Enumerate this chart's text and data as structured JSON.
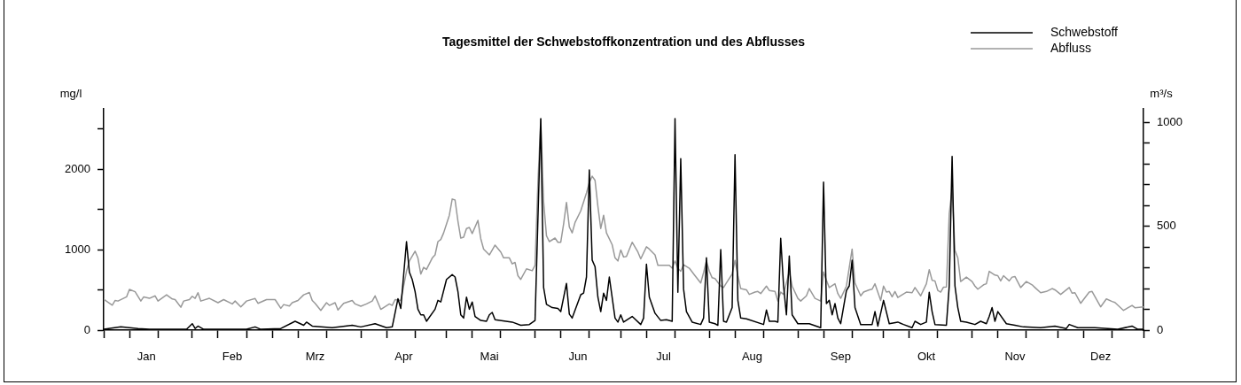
{
  "chart_data": {
    "type": "line",
    "title": "Tagesmittel der Schwebstoffkonzentration und des Abflusses",
    "ylabel": "mg/l",
    "y2label": "m³/s",
    "legend": "top right",
    "marker": "none",
    "line_style": "solid",
    "grid": false,
    "xlim": [
      "--01-01",
      "--12-31"
    ],
    "xticks": [
      {
        "value": "--01-01",
        "label": null
      },
      {
        "value": "--01-10",
        "label": null
      },
      {
        "value": "--01-16",
        "label": "Jan"
      },
      {
        "value": "--01-20",
        "label": null
      },
      {
        "value": "--02-01",
        "label": null
      },
      {
        "value": "--02-10",
        "label": null
      },
      {
        "value": "--02-15",
        "label": "Feb"
      },
      {
        "value": "--02-20",
        "label": null
      },
      {
        "value": "--03-01",
        "label": null
      },
      {
        "value": "--03-10",
        "label": null
      },
      {
        "value": "--03-16",
        "label": "Mrz"
      },
      {
        "value": "--03-20",
        "label": null
      },
      {
        "value": "--04-01",
        "label": null
      },
      {
        "value": "--04-10",
        "label": null
      },
      {
        "value": "--04-16",
        "label": "Apr"
      },
      {
        "value": "--04-20",
        "label": null
      },
      {
        "value": "--05-01",
        "label": null
      },
      {
        "value": "--05-10",
        "label": null
      },
      {
        "value": "--05-16",
        "label": "Mai"
      },
      {
        "value": "--05-20",
        "label": null
      },
      {
        "value": "--06-01",
        "label": null
      },
      {
        "value": "--06-10",
        "label": null
      },
      {
        "value": "--06-16",
        "label": "Jun"
      },
      {
        "value": "--06-20",
        "label": null
      },
      {
        "value": "--07-01",
        "label": null
      },
      {
        "value": "--07-10",
        "label": null
      },
      {
        "value": "--07-16",
        "label": "Jul"
      },
      {
        "value": "--07-20",
        "label": null
      },
      {
        "value": "--08-01",
        "label": null
      },
      {
        "value": "--08-10",
        "label": null
      },
      {
        "value": "--08-16",
        "label": "Aug"
      },
      {
        "value": "--08-20",
        "label": null
      },
      {
        "value": "--09-01",
        "label": null
      },
      {
        "value": "--09-10",
        "label": null
      },
      {
        "value": "--09-16",
        "label": "Sep"
      },
      {
        "value": "--09-20",
        "label": null
      },
      {
        "value": "--10-01",
        "label": null
      },
      {
        "value": "--10-10",
        "label": null
      },
      {
        "value": "--10-16",
        "label": "Okt"
      },
      {
        "value": "--10-20",
        "label": null
      },
      {
        "value": "--11-01",
        "label": null
      },
      {
        "value": "--11-10",
        "label": null
      },
      {
        "value": "--11-16",
        "label": "Nov"
      },
      {
        "value": "--11-20",
        "label": null
      },
      {
        "value": "--12-01",
        "label": null
      },
      {
        "value": "--12-10",
        "label": null
      },
      {
        "value": "--12-16",
        "label": "Dez"
      },
      {
        "value": "--12-20",
        "label": null
      },
      {
        "value": "--12-31",
        "label": null
      }
    ],
    "ylim": [
      0,
      2750
    ],
    "yticks": [
      0,
      {
        "value": 500,
        "label": null
      },
      1000,
      {
        "value": 1500,
        "label": null
      },
      2000,
      {
        "value": 2500,
        "label": null
      }
    ],
    "y2lim": [
      0,
      1065
    ],
    "y2ticks": [
      0,
      {
        "value": 100,
        "label": null
      },
      {
        "value": 200,
        "label": null
      },
      {
        "value": 300,
        "label": null
      },
      {
        "value": 400,
        "label": null
      },
      500,
      {
        "value": 600,
        "label": null
      },
      {
        "value": 700,
        "label": null
      },
      {
        "value": 800,
        "label": null
      },
      {
        "value": 900,
        "label": null
      },
      1000
    ],
    "series": [
      {
        "name": "Schwebstoff",
        "color": "#000000",
        "x": [
          "--01-01",
          "--01-07",
          "--01-13",
          "--01-17",
          "--01-30",
          "--02-01",
          "--02-02",
          "--02-03",
          "--02-05",
          "--02-20",
          "--02-23",
          "--02-25",
          "--03-04",
          "--03-09",
          "--03-12",
          "--03-13",
          "--03-15",
          "--03-22",
          "--03-29",
          "--04-01",
          "--04-06",
          "--04-10",
          "--04-12",
          "--04-14",
          "--04-15",
          "--04-17",
          "--04-18",
          "--04-19",
          "--04-20",
          "--04-21",
          "--04-22",
          "--04-23",
          "--04-24",
          "--04-27",
          "--04-28",
          "--04-29",
          "--05-01",
          "--05-03",
          "--05-04",
          "--05-05",
          "--05-06",
          "--05-07",
          "--05-08",
          "--05-09",
          "--05-10",
          "--05-11",
          "--05-13",
          "--05-15",
          "--05-16",
          "--05-17",
          "--05-18",
          "--05-24",
          "--05-27",
          "--05-30",
          "--06-01",
          "--06-03",
          "--06-04",
          "--06-05",
          "--06-07",
          "--06-09",
          "--06-10",
          "--06-12",
          "--06-13",
          "--06-14",
          "--06-17",
          "--06-18",
          "--06-19",
          "--06-20",
          "--06-21",
          "--06-22",
          "--06-23",
          "--06-24",
          "--06-25",
          "--06-26",
          "--06-27",
          "--06-29",
          "--06-30",
          "--07-01",
          "--07-02",
          "--07-05",
          "--07-08",
          "--07-09",
          "--07-10",
          "--07-11",
          "--07-13",
          "--07-15",
          "--07-17",
          "--07-19",
          "--07-20",
          "--07-21",
          "--07-22",
          "--07-23",
          "--07-24",
          "--07-26",
          "--07-29",
          "--07-30",
          "--07-31",
          "--08-01",
          "--08-03",
          "--08-04",
          "--08-05",
          "--08-06",
          "--08-07",
          "--08-09",
          "--08-10",
          "--08-11",
          "--08-12",
          "--08-14",
          "--08-20",
          "--08-21",
          "--08-22",
          "--08-24",
          "--08-25",
          "--08-26",
          "--08-27",
          "--08-28",
          "--08-29",
          "--08-30",
          "--09-01",
          "--09-05",
          "--09-09",
          "--09-10",
          "--09-11",
          "--09-12",
          "--09-13",
          "--09-14",
          "--09-15",
          "--09-16",
          "--09-18",
          "--09-19",
          "--09-20",
          "--09-21",
          "--09-23",
          "--09-27",
          "--09-28",
          "--09-29",
          "--10-01",
          "--10-03",
          "--10-06",
          "--10-08",
          "--10-11",
          "--10-12",
          "--10-14",
          "--10-16",
          "--10-17",
          "--10-18",
          "--10-19",
          "--10-23",
          "--10-24",
          "--10-25",
          "--10-26",
          "--10-27",
          "--10-28",
          "--10-30",
          "--11-02",
          "--11-04",
          "--11-06",
          "--11-07",
          "--11-08",
          "--11-09",
          "--11-10",
          "--11-13",
          "--11-16",
          "--11-19",
          "--11-25",
          "--11-30",
          "--12-04",
          "--12-05",
          "--12-08",
          "--12-14",
          "--12-22",
          "--12-27",
          "--12-29",
          "--12-31"
        ],
        "values": [
          10,
          40,
          20,
          10,
          10,
          80,
          20,
          50,
          10,
          10,
          40,
          10,
          20,
          110,
          60,
          100,
          50,
          30,
          60,
          40,
          80,
          30,
          40,
          390,
          270,
          1100,
          720,
          630,
          480,
          260,
          190,
          190,
          110,
          260,
          370,
          350,
          630,
          690,
          660,
          480,
          190,
          150,
          410,
          260,
          350,
          170,
          120,
          110,
          190,
          220,
          130,
          100,
          60,
          70,
          120,
          2630,
          530,
          320,
          280,
          270,
          230,
          580,
          200,
          150,
          440,
          460,
          660,
          1990,
          870,
          790,
          410,
          230,
          460,
          370,
          660,
          150,
          100,
          190,
          100,
          170,
          70,
          150,
          820,
          410,
          210,
          120,
          130,
          110,
          2630,
          470,
          2130,
          510,
          230,
          100,
          70,
          150,
          900,
          100,
          80,
          60,
          1000,
          110,
          100,
          280,
          2180,
          370,
          150,
          140,
          70,
          250,
          110,
          110,
          100,
          1140,
          550,
          190,
          920,
          190,
          80,
          80,
          30,
          1840,
          330,
          370,
          190,
          330,
          150,
          80,
          490,
          550,
          870,
          280,
          70,
          70,
          230,
          50,
          370,
          80,
          100,
          70,
          30,
          110,
          70,
          100,
          470,
          230,
          70,
          60,
          550,
          2160,
          550,
          280,
          110,
          100,
          70,
          110,
          80,
          170,
          280,
          110,
          230,
          80,
          60,
          40,
          30,
          50,
          20,
          70,
          30,
          30,
          10,
          50,
          10,
          10
        ]
      },
      {
        "name": "Abfluss",
        "color": "#999999",
        "axis": "y2",
        "x": [
          "--01-01",
          "--01-04",
          "--01-05",
          "--01-06",
          "--01-09",
          "--01-10",
          "--01-12",
          "--01-14",
          "--01-15",
          "--01-17",
          "--01-19",
          "--01-20",
          "--01-23",
          "--01-25",
          "--01-26",
          "--01-28",
          "--01-29",
          "--01-31",
          "--02-01",
          "--02-02",
          "--02-03",
          "--02-04",
          "--02-07",
          "--02-10",
          "--02-12",
          "--02-15",
          "--02-16",
          "--02-18",
          "--02-20",
          "--02-23",
          "--02-24",
          "--02-27",
          "--03-02",
          "--03-04",
          "--03-05",
          "--03-07",
          "--03-08",
          "--03-10",
          "--03-12",
          "--03-14",
          "--03-15",
          "--03-16",
          "--03-18",
          "--03-20",
          "--03-21",
          "--03-23",
          "--03-24",
          "--03-26",
          "--03-29",
          "--03-30",
          "--04-01",
          "--04-03",
          "--04-05",
          "--04-06",
          "--04-08",
          "--04-11",
          "--04-12",
          "--04-13",
          "--04-15",
          "--04-17",
          "--04-18",
          "--04-20",
          "--04-21",
          "--04-22",
          "--04-23",
          "--04-24",
          "--04-26",
          "--04-27",
          "--04-28",
          "--04-29",
          "--04-30",
          "--05-02",
          "--05-03",
          "--05-04",
          "--05-05",
          "--05-06",
          "--05-07",
          "--05-08",
          "--05-09",
          "--05-10",
          "--05-12",
          "--05-13",
          "--05-14",
          "--05-16",
          "--05-18",
          "--05-20",
          "--05-21",
          "--05-23",
          "--05-24",
          "--05-25",
          "--05-26",
          "--05-27",
          "--05-29",
          "--05-31",
          "--06-01",
          "--06-02",
          "--06-03",
          "--06-04",
          "--06-05",
          "--06-06",
          "--06-08",
          "--06-09",
          "--06-10",
          "--06-11",
          "--06-12",
          "--06-13",
          "--06-14",
          "--06-15",
          "--06-17",
          "--06-19",
          "--06-20",
          "--06-21",
          "--06-22",
          "--06-23",
          "--06-24",
          "--06-25",
          "--06-26",
          "--06-28",
          "--06-29",
          "--06-30",
          "--07-01",
          "--07-02",
          "--07-03",
          "--07-05",
          "--07-07",
          "--07-08",
          "--07-10",
          "--07-11",
          "--07-13",
          "--07-14",
          "--07-18",
          "--07-19",
          "--07-20",
          "--07-21",
          "--07-22",
          "--07-23",
          "--07-25",
          "--07-27",
          "--07-29",
          "--07-30",
          "--07-31",
          "--08-01",
          "--08-02",
          "--08-03",
          "--08-05",
          "--08-06",
          "--08-07",
          "--08-09",
          "--08-10",
          "--08-11",
          "--08-12",
          "--08-14",
          "--08-15",
          "--08-17",
          "--08-18",
          "--08-19",
          "--08-21",
          "--08-22",
          "--08-24",
          "--08-25",
          "--08-26",
          "--08-27",
          "--08-29",
          "--08-30",
          "--09-01",
          "--09-02",
          "--09-04",
          "--09-05",
          "--09-07",
          "--09-09",
          "--09-10",
          "--09-11",
          "--09-12",
          "--09-14",
          "--09-15",
          "--09-16",
          "--09-18",
          "--09-20",
          "--09-21",
          "--09-23",
          "--09-24",
          "--09-26",
          "--09-27",
          "--09-28",
          "--09-30",
          "--10-01",
          "--10-02",
          "--10-03",
          "--10-04",
          "--10-05",
          "--10-06",
          "--10-09",
          "--10-11",
          "--10-12",
          "--10-14",
          "--10-16",
          "--10-17",
          "--10-18",
          "--10-19",
          "--10-20",
          "--10-21",
          "--10-22",
          "--10-23",
          "--10-24",
          "--10-25",
          "--10-26",
          "--10-27",
          "--10-28",
          "--10-30",
          "--11-01",
          "--11-02",
          "--11-03",
          "--11-05",
          "--11-06",
          "--11-07",
          "--11-09",
          "--11-10",
          "--11-11",
          "--11-12",
          "--11-14",
          "--11-15",
          "--11-16",
          "--11-18",
          "--11-20",
          "--11-22",
          "--11-23",
          "--11-25",
          "--11-27",
          "--11-29",
          "--11-30",
          "--12-02",
          "--12-05",
          "--12-06",
          "--12-07",
          "--12-09",
          "--12-12",
          "--12-13",
          "--12-16",
          "--12-18",
          "--12-20",
          "--12-21",
          "--12-24",
          "--12-27",
          "--12-28",
          "--12-31"
        ],
        "values": [
          149,
          120,
          143,
          140,
          160,
          196,
          185,
          140,
          160,
          153,
          165,
          140,
          170,
          150,
          147,
          110,
          140,
          147,
          163,
          153,
          180,
          140,
          153,
          132,
          147,
          126,
          140,
          112,
          140,
          152,
          129,
          147,
          147,
          105,
          123,
          116,
          132,
          143,
          170,
          181,
          143,
          129,
          95,
          132,
          119,
          132,
          97,
          129,
          143,
          126,
          115,
          126,
          140,
          165,
          100,
          126,
          119,
          147,
          143,
          283,
          333,
          380,
          347,
          270,
          302,
          292,
          347,
          362,
          426,
          436,
          468,
          553,
          631,
          626,
          525,
          443,
          447,
          489,
          494,
          465,
          528,
          440,
          390,
          362,
          409,
          376,
          348,
          348,
          319,
          326,
          262,
          244,
          295,
          286,
          312,
          709,
          1014,
          617,
          454,
          426,
          443,
          423,
          423,
          511,
          615,
          497,
          468,
          518,
          574,
          660,
          709,
          741,
          721,
          596,
          489,
          553,
          468,
          411,
          348,
          333,
          386,
          352,
          355,
          423,
          376,
          343,
          401,
          390,
          362,
          312,
          312,
          298,
          333,
          298,
          283,
          315,
          298,
          262,
          227,
          277,
          333,
          283,
          252,
          248,
          212,
          205,
          227,
          270,
          336,
          262,
          200,
          194,
          172,
          183,
          186,
          176,
          212,
          191,
          186,
          140,
          183,
          172,
          283,
          212,
          153,
          140,
          165,
          200,
          153,
          140,
          280,
          240,
          205,
          223,
          176,
          153,
          212,
          390,
          227,
          165,
          183,
          194,
          197,
          223,
          143,
          212,
          183,
          186,
          160,
          186,
          157,
          183,
          180,
          205,
          165,
          223,
          291,
          240,
          237,
          191,
          183,
          207,
          208,
          560,
          680,
          383,
          348,
          234,
          255,
          234,
          212,
          197,
          218,
          223,
          283,
          265,
          262,
          237,
          262,
          237,
          255,
          258,
          205,
          234,
          218,
          205,
          180,
          186,
          200,
          194,
          172,
          205,
          178,
          180,
          129,
          183,
          186,
          112,
          150,
          138,
          133,
          95,
          119,
          108,
          112
        ]
      }
    ]
  }
}
